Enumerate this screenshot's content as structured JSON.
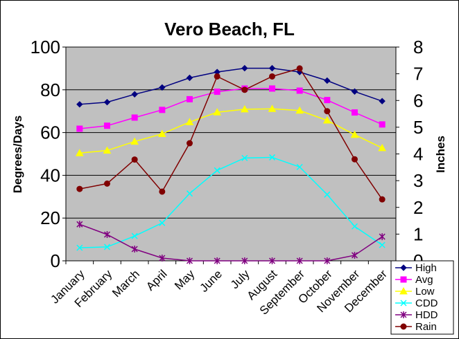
{
  "chart_data": {
    "type": "line",
    "title": "Vero Beach, FL",
    "ylabel_left": "Degrees/Days",
    "ylabel_right": "Inches",
    "ylim_left": [
      0,
      100
    ],
    "yticks_left": [
      "0",
      "20",
      "40",
      "60",
      "80",
      "100"
    ],
    "ylim_right": [
      0,
      8
    ],
    "yticks_right": [
      "0",
      "1",
      "2",
      "3",
      "4",
      "5",
      "6",
      "7",
      "8"
    ],
    "categories": [
      "January",
      "February",
      "March",
      "April",
      "May",
      "June",
      "July",
      "August",
      "September",
      "October",
      "November",
      "December"
    ],
    "grid": true,
    "plot_background": "#c0c0c0",
    "legend_position": "bottom-right",
    "series": [
      {
        "name": "High",
        "axis": "left",
        "color": "#000080",
        "marker": "diamond",
        "values": [
          73.2,
          74.2,
          77.9,
          81.1,
          85.6,
          88.3,
          90.1,
          90.1,
          88.3,
          84.3,
          79.2,
          74.7
        ]
      },
      {
        "name": "Avg",
        "axis": "left",
        "color": "#ff00ff",
        "marker": "square",
        "values": [
          61.8,
          63.2,
          67.0,
          70.6,
          75.6,
          79.1,
          80.6,
          80.6,
          79.6,
          75.2,
          69.4,
          63.8
        ]
      },
      {
        "name": "Low",
        "axis": "left",
        "color": "#ffff00",
        "marker": "triangle",
        "values": [
          50.4,
          51.6,
          55.8,
          59.4,
          64.9,
          69.5,
          70.9,
          71.1,
          70.3,
          65.7,
          59.0,
          52.8
        ]
      },
      {
        "name": "CDD",
        "axis": "left",
        "color": "#00ffff",
        "marker": "x",
        "values": [
          6.1,
          6.5,
          11.6,
          17.7,
          31.5,
          42.3,
          48.1,
          48.4,
          43.9,
          31.0,
          16.1,
          7.4
        ]
      },
      {
        "name": "HDD",
        "axis": "left",
        "color": "#800080",
        "marker": "star",
        "values": [
          17.1,
          12.3,
          5.5,
          1.3,
          0,
          0,
          0,
          0,
          0,
          0,
          2.6,
          11.3
        ]
      },
      {
        "name": "Rain",
        "axis": "right",
        "color": "#800000",
        "marker": "circle",
        "values": [
          2.69,
          2.89,
          3.79,
          2.59,
          4.4,
          6.9,
          6.4,
          6.9,
          7.2,
          5.6,
          3.8,
          2.3
        ]
      }
    ]
  }
}
